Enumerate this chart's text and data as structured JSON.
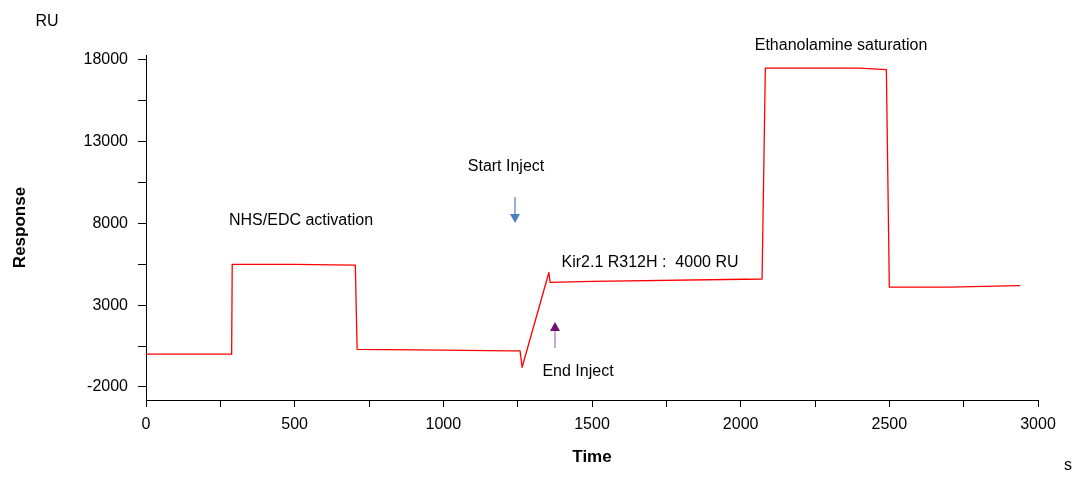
{
  "chart_data": {
    "type": "line",
    "xlabel": "Time",
    "ylabel": "Response",
    "x": [
      0,
      288,
      290,
      500,
      700,
      704,
      710,
      1000,
      1250,
      1258,
      1265,
      1355,
      1359,
      1500,
      2072,
      2083,
      2200,
      2400,
      2490,
      2500,
      2700,
      2940
    ],
    "series": [
      {
        "color": "#ff0000",
        "values": [
          0,
          0,
          5500,
          5500,
          5450,
          5450,
          300,
          250,
          200,
          200,
          -800,
          5000,
          4400,
          4450,
          4600,
          17500,
          17500,
          17500,
          17400,
          4100,
          4100,
          4200
        ]
      }
    ],
    "xlim": [
      0,
      3000
    ],
    "ylim": [
      -2800,
      18300
    ],
    "xticks": [
      0,
      {
        "value": 250,
        "label": null
      },
      500,
      {
        "value": 750,
        "label": null
      },
      1000,
      {
        "value": 1250,
        "label": null
      },
      1500,
      {
        "value": 1750,
        "label": null
      },
      2000,
      {
        "value": 2250,
        "label": null
      },
      2500,
      {
        "value": 2750,
        "label": null
      },
      3000
    ],
    "yticks": [
      -2000,
      {
        "value": 500,
        "label": null
      },
      3000,
      {
        "value": 5500,
        "label": null
      },
      8000,
      {
        "value": 10500,
        "label": null
      },
      13000,
      {
        "value": 15500,
        "label": null
      },
      18000
    ],
    "grid": false,
    "legend": false,
    "marker": "none",
    "line_style": "solid",
    "annotations": [
      "RU",
      "s",
      "NHS/EDC activation",
      "Start Inject",
      "Kir2.1 R312H :  4000 RU",
      "End Inject",
      "Ethanolamine saturation"
    ]
  }
}
